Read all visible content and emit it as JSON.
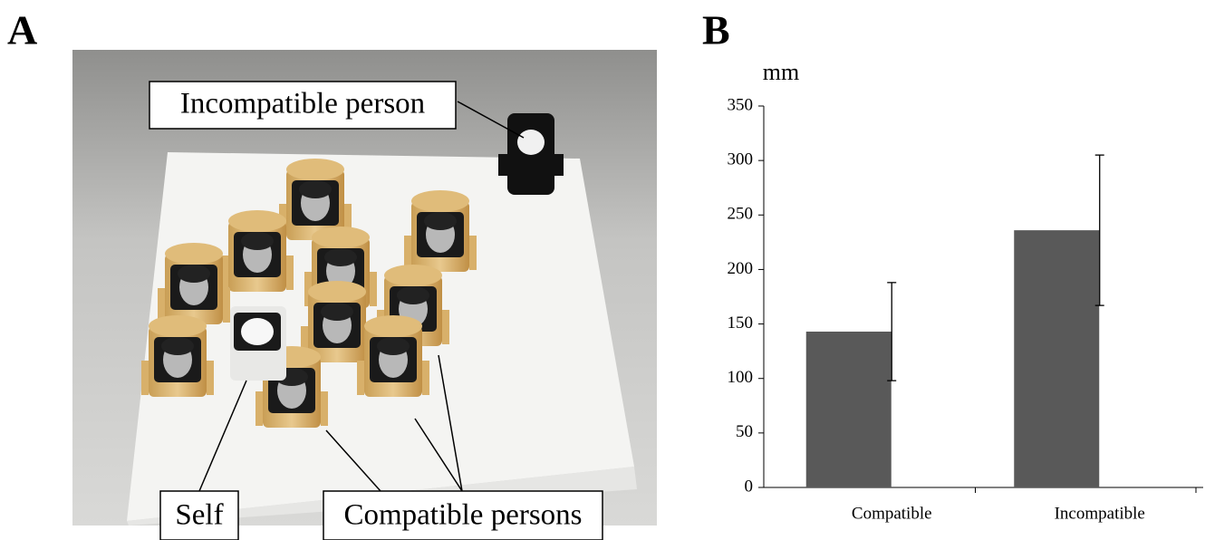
{
  "panels": {
    "a": "A",
    "b": "B"
  },
  "photo": {
    "labels": [
      "Incompatible person",
      "Self",
      "Compatible persons"
    ]
  },
  "chart_data": {
    "type": "bar",
    "y_label": "mm",
    "categories": [
      "Compatible",
      "Incompatible"
    ],
    "values": [
      143,
      236
    ],
    "errors": [
      45,
      69
    ],
    "color": "#595959",
    "ylim": [
      0,
      350
    ],
    "yticks": [
      0,
      50,
      100,
      150,
      200,
      250,
      300,
      350
    ],
    "grid": false
  }
}
